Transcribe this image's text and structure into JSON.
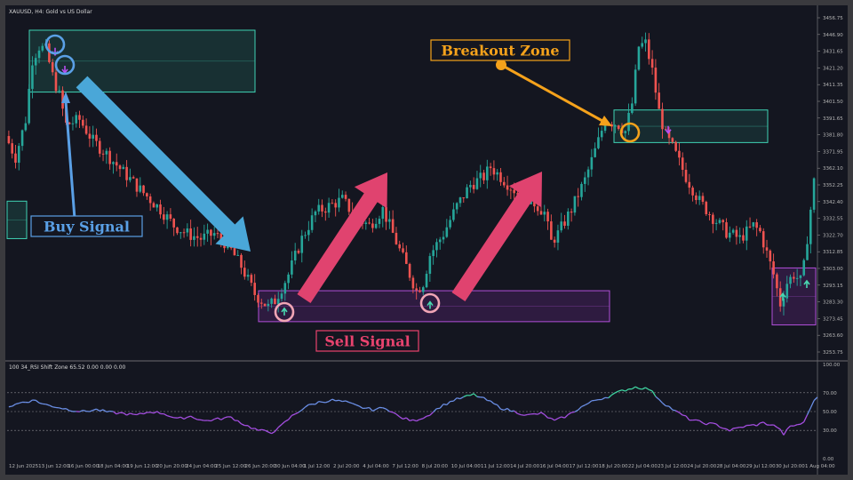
{
  "chart_title": "XAUUSD, H4:  Gold vs US Dollar",
  "indicator_label": "100 34_RSI Shift Zone 65.52 0.00 0.00 0.00",
  "annotations": {
    "buy_signal": "Buy Signal",
    "sell_signal": "Sell Signal",
    "breakout_zone": "Breakout Zone"
  },
  "colors": {
    "background": "#141620",
    "bull": "#26a69a",
    "bear": "#ef5350",
    "buy_label": "#5aa0e6",
    "sell_label": "#e8436e",
    "breakout_label": "#f5a21b",
    "zone_green": "#3fd3b4",
    "zone_purple": "#b04fd8"
  },
  "chart_data": [
    {
      "type": "candlestick",
      "symbol": "XAUUSD",
      "timeframe": "H4",
      "ylim": [
        3248,
        3462
      ],
      "y_ticks": [
        "3456.75",
        "3446.90",
        "3431.65",
        "3421.20",
        "3411.35",
        "3401.50",
        "3391.65",
        "3381.80",
        "3371.95",
        "3362.10",
        "3352.25",
        "3342.40",
        "3332.55",
        "3322.70",
        "3312.85",
        "3303.00",
        "3293.15",
        "3283.30",
        "3273.45",
        "3263.60",
        "3253.75"
      ],
      "x_ticks": [
        "12 Jun 2025",
        "13 Jun 12:00",
        "16 Jun 00:00",
        "18 Jun 04:00",
        "19 Jun 12:00",
        "20 Jun 20:00",
        "24 Jun 04:00",
        "25 Jun 12:00",
        "26 Jun 20:00",
        "30 Jun 04:00",
        "1 Jul 12:00",
        "2 Jul 20:00",
        "4 Jul 04:00",
        "7 Jul 12:00",
        "8 Jul 20:00",
        "10 Jul 04:00",
        "11 Jul 12:00",
        "14 Jul 20:00",
        "16 Jul 04:00",
        "17 Jul 12:00",
        "18 Jul 20:00",
        "22 Jul 04:00",
        "23 Jul 12:00",
        "24 Jul 20:00",
        "28 Jul 04:00",
        "29 Jul 12:00",
        "30 Jul 20:00",
        "1 Aug 04:00"
      ],
      "anchors": [
        [
          0,
          3385
        ],
        [
          3,
          3372
        ],
        [
          6,
          3395
        ],
        [
          8,
          3432
        ],
        [
          10,
          3440
        ],
        [
          12,
          3438
        ],
        [
          14,
          3422
        ],
        [
          16,
          3410
        ],
        [
          18,
          3392
        ],
        [
          22,
          3395
        ],
        [
          26,
          3382
        ],
        [
          30,
          3374
        ],
        [
          34,
          3365
        ],
        [
          40,
          3352
        ],
        [
          46,
          3340
        ],
        [
          50,
          3330
        ],
        [
          54,
          3325
        ],
        [
          58,
          3322
        ],
        [
          62,
          3325
        ],
        [
          66,
          3318
        ],
        [
          70,
          3305
        ],
        [
          74,
          3288
        ],
        [
          78,
          3280
        ],
        [
          80,
          3284
        ],
        [
          84,
          3300
        ],
        [
          88,
          3322
        ],
        [
          92,
          3338
        ],
        [
          96,
          3342
        ],
        [
          100,
          3346
        ],
        [
          104,
          3335
        ],
        [
          108,
          3330
        ],
        [
          112,
          3340
        ],
        [
          116,
          3320
        ],
        [
          120,
          3300
        ],
        [
          122,
          3290
        ],
        [
          124,
          3295
        ],
        [
          126,
          3312
        ],
        [
          130,
          3325
        ],
        [
          134,
          3342
        ],
        [
          138,
          3355
        ],
        [
          142,
          3360
        ],
        [
          144,
          3366
        ],
        [
          148,
          3358
        ],
        [
          152,
          3350
        ],
        [
          156,
          3346
        ],
        [
          160,
          3338
        ],
        [
          162,
          3320
        ],
        [
          164,
          3325
        ],
        [
          168,
          3340
        ],
        [
          172,
          3358
        ],
        [
          176,
          3382
        ],
        [
          178,
          3395
        ],
        [
          182,
          3392
        ],
        [
          184,
          3388
        ],
        [
          186,
          3405
        ],
        [
          188,
          3440
        ],
        [
          190,
          3442
        ],
        [
          192,
          3425
        ],
        [
          194,
          3400
        ],
        [
          196,
          3385
        ],
        [
          198,
          3378
        ],
        [
          202,
          3360
        ],
        [
          206,
          3345
        ],
        [
          210,
          3335
        ],
        [
          214,
          3326
        ],
        [
          218,
          3322
        ],
        [
          222,
          3330
        ],
        [
          224,
          3326
        ],
        [
          228,
          3300
        ],
        [
          230,
          3282
        ],
        [
          232,
          3295
        ],
        [
          234,
          3300
        ],
        [
          236,
          3296
        ],
        [
          237,
          3305
        ],
        [
          239,
          3340
        ],
        [
          240,
          3357
        ]
      ],
      "zones": [
        {
          "kind": "buy",
          "top": 3450,
          "bottom": 3412
        },
        {
          "kind": "breakout",
          "top": 3401,
          "bottom": 3381
        },
        {
          "kind": "sell",
          "top": 3290,
          "bottom": 3271
        },
        {
          "kind": "sell-small",
          "top": 3304,
          "bottom": 3269
        },
        {
          "kind": "side",
          "top": 3345,
          "bottom": 3322
        }
      ],
      "signals": [
        {
          "kind": "down",
          "price": 3437
        },
        {
          "kind": "down",
          "price": 3426
        },
        {
          "kind": "up",
          "price": 3277
        },
        {
          "kind": "up",
          "price": 3281
        },
        {
          "kind": "down",
          "price": 3389
        },
        {
          "kind": "up",
          "price": 3286
        }
      ]
    },
    {
      "type": "line",
      "name": "RSI Shift Zone",
      "ylim": [
        0,
        100
      ],
      "y_ticks": [
        "100.00",
        "70.00",
        "50.00",
        "30.00",
        "0.00"
      ],
      "levels": [
        70,
        50,
        30
      ],
      "anchors": [
        [
          0,
          55
        ],
        [
          4,
          60
        ],
        [
          8,
          62
        ],
        [
          10,
          58
        ],
        [
          14,
          55
        ],
        [
          18,
          52
        ],
        [
          22,
          50
        ],
        [
          26,
          52
        ],
        [
          30,
          49
        ],
        [
          34,
          48
        ],
        [
          38,
          46
        ],
        [
          42,
          50
        ],
        [
          46,
          48
        ],
        [
          50,
          42
        ],
        [
          54,
          45
        ],
        [
          58,
          40
        ],
        [
          62,
          42
        ],
        [
          66,
          44
        ],
        [
          70,
          36
        ],
        [
          74,
          30
        ],
        [
          78,
          28
        ],
        [
          80,
          32
        ],
        [
          84,
          45
        ],
        [
          88,
          55
        ],
        [
          92,
          60
        ],
        [
          96,
          62
        ],
        [
          100,
          60
        ],
        [
          104,
          55
        ],
        [
          108,
          52
        ],
        [
          112,
          54
        ],
        [
          116,
          44
        ],
        [
          120,
          40
        ],
        [
          124,
          45
        ],
        [
          128,
          55
        ],
        [
          132,
          62
        ],
        [
          136,
          66
        ],
        [
          138,
          68
        ],
        [
          142,
          62
        ],
        [
          146,
          54
        ],
        [
          150,
          50
        ],
        [
          154,
          46
        ],
        [
          158,
          48
        ],
        [
          162,
          40
        ],
        [
          166,
          46
        ],
        [
          170,
          55
        ],
        [
          174,
          62
        ],
        [
          178,
          66
        ],
        [
          182,
          72
        ],
        [
          186,
          76
        ],
        [
          190,
          74
        ],
        [
          194,
          60
        ],
        [
          198,
          50
        ],
        [
          202,
          42
        ],
        [
          206,
          38
        ],
        [
          210,
          36
        ],
        [
          214,
          30
        ],
        [
          218,
          34
        ],
        [
          222,
          36
        ],
        [
          224,
          38
        ],
        [
          228,
          34
        ],
        [
          230,
          26
        ],
        [
          232,
          34
        ],
        [
          236,
          38
        ],
        [
          238,
          55
        ],
        [
          240,
          66
        ]
      ]
    }
  ]
}
